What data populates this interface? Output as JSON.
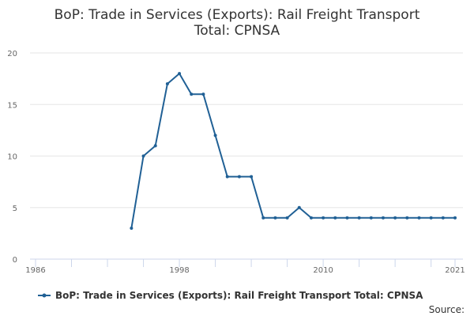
{
  "chart_data": {
    "type": "line",
    "title_lines": [
      "BoP: Trade in Services (Exports): Rail Freight Transport",
      "Total: CPNSA"
    ],
    "xlabel": "",
    "ylabel": "",
    "xlim": [
      1986,
      2021
    ],
    "ylim": [
      0,
      20
    ],
    "x_ticks": [
      1986,
      1998,
      2010,
      2021
    ],
    "y_ticks": [
      0,
      5,
      10,
      15,
      20
    ],
    "grid": "horizontal",
    "legend_position": "bottom",
    "series": [
      {
        "name": "BoP: Trade in Services (Exports): Rail Freight Transport Total: CPNSA",
        "color": "#206095",
        "x": [
          1994,
          1995,
          1996,
          1997,
          1998,
          1999,
          2000,
          2001,
          2002,
          2003,
          2004,
          2005,
          2006,
          2007,
          2008,
          2009,
          2010,
          2011,
          2012,
          2013,
          2014,
          2015,
          2016,
          2017,
          2018,
          2019,
          2020,
          2021
        ],
        "values": [
          3,
          10,
          11,
          17,
          18,
          16,
          16,
          12,
          8,
          8,
          8,
          4,
          4,
          4,
          5,
          4,
          4,
          4,
          4,
          4,
          4,
          4,
          4,
          4,
          4,
          4,
          4,
          4
        ]
      }
    ]
  },
  "footer": {
    "source_label": "Source:"
  }
}
